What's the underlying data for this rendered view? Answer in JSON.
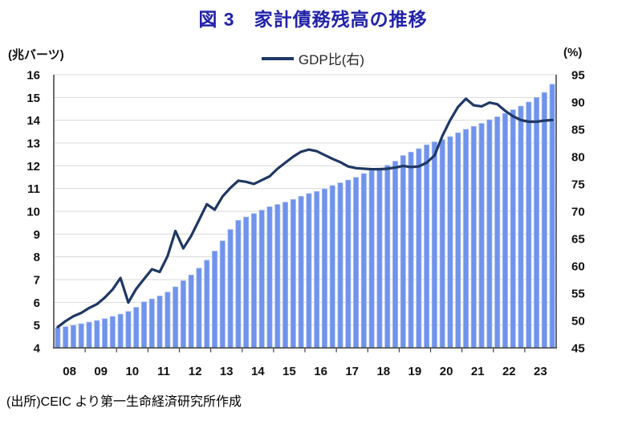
{
  "title": "図 3　家計債務残高の推移",
  "legend": {
    "label": "GDP比(右)"
  },
  "axes": {
    "left_unit": "(兆バーツ)",
    "right_unit": "(%)",
    "left_min": 4,
    "left_max": 16,
    "left_step": 1,
    "right_min": 45,
    "right_max": 95,
    "right_step": 5
  },
  "source": "(出所)CEIC より第一生命経済研究所作成",
  "colors": {
    "title": "#2222AA",
    "bar": "#7093EC",
    "bar_edge": "#A3BAF2",
    "line": "#1F3864",
    "grid": "#D9D9D9",
    "axis": "#3F3F3F",
    "text": "#111111"
  },
  "chart_data": {
    "type": "bar",
    "subtype": "bar+line combo, quarterly",
    "title": "図 3　家計債務残高の推移",
    "xlabel": "",
    "ylabel_left": "兆バーツ",
    "ylabel_right": "%",
    "ylim_left": [
      4,
      16
    ],
    "ylim_right": [
      45,
      95
    ],
    "grid": true,
    "legend_position": "top-center",
    "x_years": [
      "08",
      "09",
      "10",
      "11",
      "12",
      "13",
      "14",
      "15",
      "16",
      "17",
      "18",
      "19",
      "20",
      "21",
      "22",
      "23"
    ],
    "categories": [
      "08Q1",
      "08Q2",
      "08Q3",
      "08Q4",
      "09Q1",
      "09Q2",
      "09Q3",
      "09Q4",
      "10Q1",
      "10Q2",
      "10Q3",
      "10Q4",
      "11Q1",
      "11Q2",
      "11Q3",
      "11Q4",
      "12Q1",
      "12Q2",
      "12Q3",
      "12Q4",
      "13Q1",
      "13Q2",
      "13Q3",
      "13Q4",
      "14Q1",
      "14Q2",
      "14Q3",
      "14Q4",
      "15Q1",
      "15Q2",
      "15Q3",
      "15Q4",
      "16Q1",
      "16Q2",
      "16Q3",
      "16Q4",
      "17Q1",
      "17Q2",
      "17Q3",
      "17Q4",
      "18Q1",
      "18Q2",
      "18Q3",
      "18Q4",
      "19Q1",
      "19Q2",
      "19Q3",
      "19Q4",
      "20Q1",
      "20Q2",
      "20Q3",
      "20Q4",
      "21Q1",
      "21Q2",
      "21Q3",
      "21Q4",
      "22Q1",
      "22Q2",
      "22Q3",
      "22Q4",
      "23Q1",
      "23Q2",
      "23Q3",
      "23Q4"
    ],
    "series": [
      {
        "name": "家計債務残高",
        "type": "bar",
        "axis": "left",
        "unit": "兆バーツ",
        "values": [
          4.88,
          4.93,
          4.99,
          5.06,
          5.13,
          5.2,
          5.28,
          5.38,
          5.48,
          5.6,
          5.78,
          6.02,
          6.15,
          6.28,
          6.45,
          6.68,
          6.95,
          7.2,
          7.5,
          7.85,
          8.25,
          8.7,
          9.2,
          9.6,
          9.75,
          9.9,
          10.05,
          10.2,
          10.3,
          10.4,
          10.52,
          10.66,
          10.78,
          10.87,
          10.98,
          11.13,
          11.25,
          11.37,
          11.49,
          11.66,
          11.79,
          11.9,
          12.02,
          12.2,
          12.45,
          12.6,
          12.75,
          12.92,
          13.05,
          13.15,
          13.28,
          13.45,
          13.6,
          13.73,
          13.86,
          14.02,
          14.15,
          14.3,
          14.46,
          14.62,
          14.8,
          15.0,
          15.22,
          15.58
        ]
      },
      {
        "name": "GDP比(右)",
        "type": "line",
        "axis": "right",
        "unit": "%",
        "values": [
          48.8,
          49.9,
          50.8,
          51.4,
          52.3,
          53.0,
          54.2,
          55.7,
          57.8,
          53.3,
          55.8,
          57.6,
          59.4,
          58.9,
          61.8,
          66.4,
          63.2,
          65.5,
          68.4,
          71.3,
          70.3,
          72.7,
          74.3,
          75.6,
          75.4,
          75.0,
          75.7,
          76.4,
          77.8,
          78.9,
          80.0,
          80.9,
          81.3,
          81.0,
          80.3,
          79.6,
          79.0,
          78.2,
          77.9,
          77.8,
          77.7,
          77.7,
          77.8,
          78.0,
          78.3,
          78.1,
          78.2,
          78.9,
          80.2,
          83.8,
          86.7,
          89.1,
          90.6,
          89.4,
          89.2,
          89.9,
          89.6,
          88.4,
          87.4,
          86.7,
          86.4,
          86.4,
          86.6,
          86.7
        ]
      }
    ]
  }
}
